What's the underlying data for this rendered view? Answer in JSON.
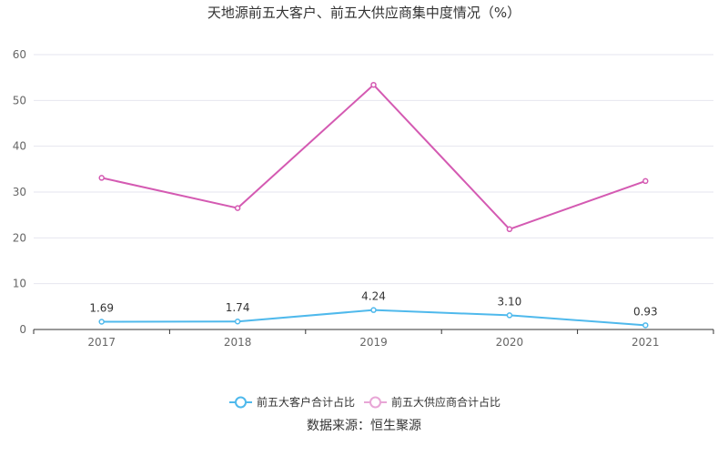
{
  "chart_data": {
    "type": "line",
    "title": "天地源前五大客户、前五大供应商集中度情况（%）",
    "categories": [
      "2017",
      "2018",
      "2019",
      "2020",
      "2021"
    ],
    "ylim": [
      0,
      60
    ],
    "yticks": [
      0,
      10,
      20,
      30,
      40,
      50,
      60
    ],
    "grid": true,
    "legend_position": "bottom",
    "series": [
      {
        "name": "前五大客户合计占比",
        "values": [
          1.69,
          1.74,
          4.24,
          3.1,
          0.93
        ],
        "data_labels": [
          "1.69",
          "1.74",
          "4.24",
          "3.10",
          "0.93"
        ],
        "show_labels": true,
        "color": "#4fb9ec"
      },
      {
        "name": "前五大供应商合计占比",
        "values": [
          33.1,
          26.5,
          53.4,
          21.9,
          32.4
        ],
        "show_labels": false,
        "color": "#d45ab2"
      }
    ],
    "source": "数据来源：恒生聚源"
  },
  "colors": {
    "axis": "#333333",
    "grid": "#e6e6ef",
    "legend_inactive": "#e8a6d6"
  }
}
